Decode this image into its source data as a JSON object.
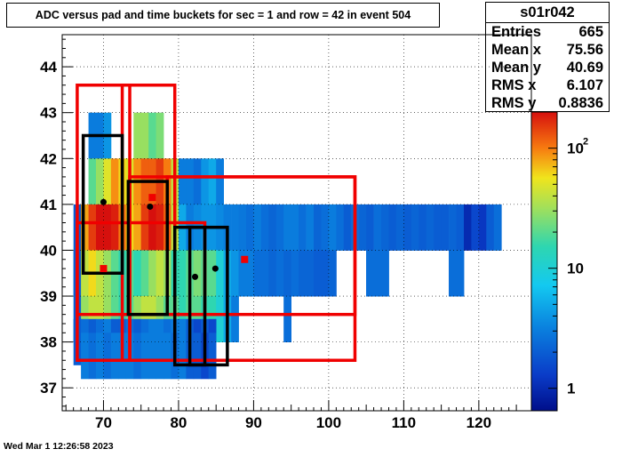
{
  "title": "ADC versus  pad and time buckets for sec = 1 and row = 42 in event 504",
  "stats": {
    "name": "s01r042",
    "rows": [
      {
        "key": "Entries",
        "value": "665"
      },
      {
        "key": "Mean x",
        "value": "75.56"
      },
      {
        "key": "Mean y",
        "value": "40.69"
      },
      {
        "key": "RMS x",
        "value": "6.107"
      },
      {
        "key": "RMS y",
        "value": "0.8836"
      }
    ]
  },
  "footer": "Wed Mar  1 12:26:58 2023",
  "chart_data": {
    "type": "heatmap",
    "x_ticks": [
      "70",
      "80",
      "90",
      "100",
      "110",
      "120"
    ],
    "y_ticks": [
      "37",
      "38",
      "39",
      "40",
      "41",
      "42",
      "43",
      "44"
    ],
    "xlim": [
      64.5,
      127
    ],
    "ylim": [
      36.5,
      44.7
    ],
    "grid": true,
    "colorbar": {
      "scale": "log",
      "range": [
        0.65,
        200
      ],
      "tick_labels": [
        {
          "base": "10",
          "exp": "2",
          "value": 100
        },
        {
          "base": "10",
          "exp": "",
          "value": 10
        },
        {
          "base": "1",
          "exp": "",
          "value": 1
        }
      ]
    },
    "cells": [
      [
        68.5,
        42.5,
        73,
        3.0
      ],
      [
        69.5,
        42.5,
        73,
        3.0
      ],
      [
        70.5,
        42.5,
        73,
        4.0
      ],
      [
        74.5,
        42.5,
        73,
        30
      ],
      [
        75.5,
        42.5,
        73,
        30
      ],
      [
        76.5,
        42.5,
        73,
        20
      ],
      [
        77.5,
        42.5,
        73,
        25
      ],
      [
        68.5,
        41.5,
        31,
        20
      ],
      [
        69.5,
        41.5,
        31,
        30
      ],
      [
        70.5,
        41.5,
        31,
        50
      ],
      [
        71.5,
        41.5,
        31,
        90
      ],
      [
        72.5,
        41.5,
        31,
        60
      ],
      [
        73.5,
        41.5,
        83,
        50
      ],
      [
        74.5,
        41.5,
        83,
        90
      ],
      [
        75.5,
        41.5,
        83,
        120
      ],
      [
        76.5,
        41.5,
        83,
        120
      ],
      [
        77.5,
        41.5,
        83,
        150
      ],
      [
        78.5,
        41.5,
        83,
        100
      ],
      [
        79.5,
        41.5,
        83,
        40
      ],
      [
        80.5,
        41.5,
        83,
        3.0
      ],
      [
        81.5,
        41.5,
        83,
        3.0
      ],
      [
        82.5,
        41.5,
        83,
        2.5
      ],
      [
        83.5,
        41.5,
        83,
        4.0
      ],
      [
        84.5,
        41.5,
        83,
        5.0
      ],
      [
        85.5,
        41.5,
        83,
        3.0
      ],
      [
        66.5,
        40.5,
        73,
        2.0
      ],
      [
        67.5,
        40.5,
        73,
        80
      ],
      [
        68.5,
        40.5,
        73,
        150
      ],
      [
        69.5,
        40.5,
        73,
        200
      ],
      [
        70.5,
        40.5,
        73,
        200
      ],
      [
        71.5,
        40.5,
        73,
        180
      ],
      [
        72.5,
        40.5,
        73,
        100
      ],
      [
        73.5,
        40.5,
        73,
        60
      ],
      [
        74.5,
        40.5,
        73,
        80
      ],
      [
        75.5,
        40.5,
        73,
        150
      ],
      [
        76.5,
        40.5,
        73,
        200
      ],
      [
        77.5,
        40.5,
        73,
        180
      ],
      [
        78.5,
        40.5,
        73,
        120
      ],
      [
        79.5,
        40.5,
        73,
        40
      ],
      [
        80.5,
        40.5,
        73,
        5.0
      ],
      [
        81.5,
        40.5,
        73,
        3.0
      ],
      [
        82.5,
        40.5,
        73,
        3.5
      ],
      [
        83.5,
        40.5,
        73,
        4.0
      ],
      [
        84.5,
        40.5,
        73,
        4.0
      ],
      [
        85.5,
        40.5,
        73,
        3.5
      ],
      [
        86.5,
        40.5,
        73,
        3.0
      ],
      [
        87.5,
        40.5,
        73,
        3.0
      ],
      [
        88.5,
        40.5,
        73,
        2.8
      ],
      [
        89.5,
        40.5,
        73,
        2.5
      ],
      [
        90.5,
        40.5,
        73,
        3.0
      ],
      [
        91.5,
        40.5,
        73,
        2.5
      ],
      [
        92.5,
        40.5,
        73,
        2.2
      ],
      [
        93.5,
        40.5,
        73,
        2.5
      ],
      [
        94.5,
        40.5,
        73,
        3.0
      ],
      [
        95.5,
        40.5,
        73,
        3.0
      ],
      [
        96.5,
        40.5,
        73,
        2.5
      ],
      [
        97.5,
        40.5,
        73,
        3.0
      ],
      [
        98.5,
        40.5,
        73,
        2.2
      ],
      [
        99.5,
        40.5,
        73,
        2.5
      ],
      [
        100.5,
        40.5,
        73,
        3.0
      ],
      [
        101.5,
        40.5,
        73,
        2.5
      ],
      [
        102.5,
        40.5,
        73,
        2.0
      ],
      [
        103.5,
        40.5,
        73,
        2.5
      ],
      [
        104.5,
        40.5,
        73,
        2.2
      ],
      [
        105.5,
        40.5,
        73,
        2.0
      ],
      [
        106.5,
        40.5,
        73,
        2.5
      ],
      [
        107.5,
        40.5,
        73,
        2.2
      ],
      [
        108.5,
        40.5,
        73,
        2.0
      ],
      [
        109.5,
        40.5,
        73,
        2.2
      ],
      [
        110.5,
        40.5,
        73,
        2.0
      ],
      [
        111.5,
        40.5,
        73,
        2.2
      ],
      [
        112.5,
        40.5,
        73,
        2.0
      ],
      [
        113.5,
        40.5,
        73,
        2.2
      ],
      [
        114.5,
        40.5,
        73,
        2.0
      ],
      [
        115.5,
        40.5,
        73,
        2.0
      ],
      [
        116.5,
        40.5,
        73,
        2.2
      ],
      [
        117.5,
        40.5,
        73,
        2.0
      ],
      [
        118.5,
        40.5,
        73,
        1.0
      ],
      [
        119.5,
        40.5,
        73,
        1.5
      ],
      [
        120.5,
        40.5,
        73,
        1.2
      ],
      [
        121.5,
        40.5,
        73,
        2.0
      ],
      [
        122.5,
        40.5,
        73,
        2.5
      ],
      [
        66.5,
        39.5,
        52,
        2.0
      ],
      [
        67.5,
        39.5,
        52,
        50
      ],
      [
        68.5,
        39.5,
        52,
        80
      ],
      [
        69.5,
        39.5,
        52,
        60
      ],
      [
        70.5,
        39.5,
        52,
        50
      ],
      [
        71.5,
        39.5,
        52,
        30
      ],
      [
        72.5,
        39.5,
        52,
        20
      ],
      [
        73.5,
        39.5,
        52,
        25
      ],
      [
        74.5,
        39.5,
        52,
        20
      ],
      [
        75.5,
        39.5,
        52,
        30
      ],
      [
        76.5,
        39.5,
        52,
        50
      ],
      [
        77.5,
        39.5,
        52,
        60
      ],
      [
        78.5,
        39.5,
        52,
        40
      ],
      [
        79.5,
        39.5,
        52,
        20
      ],
      [
        80.5,
        39.5,
        52,
        10
      ],
      [
        81.5,
        39.5,
        52,
        15
      ],
      [
        82.5,
        39.5,
        52,
        20
      ],
      [
        83.5,
        39.5,
        52,
        20
      ],
      [
        84.5,
        39.5,
        52,
        25
      ],
      [
        85.5,
        39.5,
        52,
        10
      ],
      [
        86.5,
        39.5,
        52,
        5.0
      ],
      [
        87.5,
        39.5,
        52,
        4.0
      ],
      [
        88.5,
        39.5,
        52,
        3.0
      ],
      [
        89.5,
        39.5,
        52,
        3.5
      ],
      [
        90.5,
        39.5,
        52,
        3.0
      ],
      [
        91.5,
        39.5,
        52,
        2.5
      ],
      [
        92.5,
        39.5,
        52,
        2.5
      ],
      [
        93.5,
        39.5,
        52,
        2.5
      ],
      [
        94.5,
        39.5,
        52,
        2.2
      ],
      [
        95.5,
        39.5,
        52,
        2.5
      ],
      [
        96.5,
        39.5,
        52,
        2.2
      ],
      [
        97.5,
        39.5,
        52,
        2.5
      ],
      [
        98.5,
        39.5,
        52,
        2.0
      ],
      [
        99.5,
        39.5,
        52,
        2.5
      ],
      [
        100.5,
        39.5,
        52,
        2.2
      ],
      [
        105.5,
        39.5,
        52,
        2.5
      ],
      [
        106.5,
        39.5,
        52,
        2.5
      ],
      [
        107.5,
        39.5,
        52,
        2.5
      ],
      [
        116.5,
        39.5,
        52,
        2.5
      ],
      [
        117.5,
        39.5,
        52,
        2.5
      ],
      [
        66.5,
        39.5,
        42,
        2.0
      ],
      [
        67.5,
        39.5,
        42,
        40
      ],
      [
        68.5,
        39.5,
        42,
        60
      ],
      [
        69.5,
        39.5,
        42,
        40
      ],
      [
        70.5,
        39.5,
        42,
        30
      ],
      [
        71.5,
        39.5,
        42,
        20
      ],
      [
        72.5,
        39.5,
        42,
        15
      ],
      [
        73.5,
        39.5,
        42,
        20
      ],
      [
        74.5,
        39.5,
        42,
        15
      ],
      [
        75.5,
        39.5,
        42,
        20
      ],
      [
        76.5,
        39.5,
        42,
        30
      ],
      [
        77.5,
        39.5,
        42,
        40
      ],
      [
        78.5,
        39.5,
        42,
        30
      ],
      [
        79.5,
        39.5,
        42,
        15
      ],
      [
        80.5,
        39.5,
        42,
        15
      ],
      [
        81.5,
        39.5,
        42,
        20
      ],
      [
        82.5,
        39.5,
        42,
        25
      ],
      [
        83.5,
        39.5,
        42,
        20
      ],
      [
        84.5,
        39.5,
        42,
        20
      ],
      [
        85.5,
        39.5,
        42,
        10
      ],
      [
        86.5,
        39.5,
        42,
        5.0
      ],
      [
        87.5,
        39.5,
        42,
        4.0
      ],
      [
        88.5,
        39.5,
        42,
        3.0
      ],
      [
        89.5,
        39.5,
        42,
        3.0
      ],
      [
        90.5,
        39.5,
        42,
        2.5
      ],
      [
        91.5,
        39.5,
        42,
        2.5
      ],
      [
        92.5,
        39.5,
        42,
        2.2
      ],
      [
        93.5,
        39.5,
        42,
        2.5
      ],
      [
        94.5,
        39.5,
        42,
        2.2
      ],
      [
        95.5,
        39.5,
        42,
        2.5
      ],
      [
        96.5,
        39.5,
        42,
        2.2
      ],
      [
        97.5,
        39.5,
        42,
        2.2
      ],
      [
        98.5,
        39.5,
        42,
        2.0
      ],
      [
        99.5,
        39.5,
        42,
        2.0
      ],
      [
        100.5,
        39.5,
        42,
        2.2
      ],
      [
        105.5,
        39.5,
        42,
        2.5
      ],
      [
        106.5,
        39.5,
        42,
        2.5
      ],
      [
        107.5,
        39.5,
        42,
        2.5
      ],
      [
        116.5,
        39.5,
        42,
        2.5
      ],
      [
        117.5,
        39.5,
        42,
        2.5
      ],
      [
        66.5,
        38.5,
        52,
        2.0
      ],
      [
        67.5,
        38.5,
        52,
        30
      ],
      [
        68.5,
        38.5,
        52,
        40
      ],
      [
        69.5,
        38.5,
        52,
        40
      ],
      [
        70.5,
        38.5,
        52,
        30
      ],
      [
        71.5,
        38.5,
        52,
        20
      ],
      [
        72.5,
        38.5,
        52,
        15
      ],
      [
        73.5,
        38.5,
        52,
        20
      ],
      [
        74.5,
        38.5,
        52,
        30
      ],
      [
        75.5,
        38.5,
        52,
        40
      ],
      [
        76.5,
        38.5,
        52,
        40
      ],
      [
        77.5,
        38.5,
        52,
        30
      ],
      [
        78.5,
        38.5,
        52,
        20
      ],
      [
        79.5,
        38.5,
        52,
        20
      ],
      [
        80.5,
        38.5,
        52,
        15
      ],
      [
        81.5,
        38.5,
        52,
        20
      ],
      [
        82.5,
        38.5,
        52,
        20
      ],
      [
        83.5,
        38.5,
        52,
        15
      ],
      [
        84.5,
        38.5,
        52,
        15
      ],
      [
        85.5,
        38.5,
        52,
        10
      ],
      [
        86.5,
        38.5,
        52,
        5.0
      ],
      [
        87.5,
        38.5,
        52,
        3.0
      ],
      [
        94.5,
        38.5,
        52,
        2.5
      ],
      [
        66.5,
        38.0,
        42,
        2.0
      ],
      [
        67.5,
        38.0,
        42,
        2.5
      ],
      [
        68.5,
        38.0,
        42,
        2.0
      ],
      [
        69.5,
        38.0,
        42,
        2.5
      ],
      [
        70.5,
        38.0,
        42,
        3.0
      ],
      [
        71.5,
        38.0,
        42,
        2.0
      ],
      [
        72.5,
        38.0,
        42,
        2.0
      ],
      [
        73.5,
        38.0,
        42,
        2.5
      ],
      [
        74.5,
        38.0,
        42,
        2.0
      ],
      [
        75.5,
        38.0,
        42,
        2.5
      ],
      [
        76.5,
        38.0,
        42,
        3.0
      ],
      [
        77.5,
        38.0,
        42,
        3.0
      ],
      [
        78.5,
        38.0,
        42,
        2.5
      ],
      [
        79.5,
        38.0,
        42,
        3.0
      ],
      [
        80.5,
        38.0,
        42,
        3.0
      ],
      [
        81.5,
        38.0,
        42,
        2.0
      ],
      [
        82.5,
        38.0,
        42,
        1.5
      ],
      [
        83.5,
        38.0,
        42,
        2.0
      ],
      [
        84.5,
        38.0,
        42,
        1.5
      ],
      [
        67.5,
        37.7,
        21,
        3.0
      ],
      [
        68.5,
        37.7,
        21,
        2.5
      ],
      [
        69.5,
        37.7,
        21,
        3.0
      ],
      [
        70.5,
        37.7,
        21,
        2.5
      ],
      [
        71.5,
        37.7,
        21,
        3.0
      ],
      [
        72.5,
        37.7,
        21,
        3.0
      ],
      [
        73.5,
        37.7,
        21,
        3.0
      ],
      [
        74.5,
        37.7,
        21,
        2.5
      ],
      [
        75.5,
        37.7,
        21,
        3.0
      ],
      [
        76.5,
        37.7,
        21,
        3.0
      ],
      [
        77.5,
        37.7,
        21,
        3.0
      ],
      [
        78.5,
        37.7,
        21,
        3.0
      ],
      [
        79.5,
        37.7,
        21,
        2.5
      ],
      [
        80.5,
        37.7,
        21,
        3.0
      ],
      [
        81.5,
        37.7,
        21,
        2.0
      ],
      [
        82.5,
        37.7,
        21,
        2.0
      ],
      [
        83.5,
        37.7,
        21,
        1.5
      ],
      [
        84.5,
        37.7,
        21,
        2.0
      ]
    ],
    "red_boxes": [
      [
        66.5,
        37.6,
        73.5,
        43.6
      ],
      [
        72.5,
        37.6,
        79.5,
        43.6
      ],
      [
        66.5,
        38.6,
        83.5,
        40.6
      ],
      [
        73.5,
        37.6,
        103.5,
        41.6
      ],
      [
        78.5,
        38.6,
        103.5,
        41.6
      ]
    ],
    "black_boxes": [
      [
        67.3,
        39.5,
        72.5,
        42.5
      ],
      [
        73.3,
        38.6,
        78.5,
        41.5
      ],
      [
        79.5,
        37.5,
        83.5,
        40.5
      ],
      [
        81.5,
        37.5,
        86.5,
        40.5
      ]
    ],
    "black_points": [
      [
        70.0,
        41.05
      ],
      [
        76.2,
        40.95
      ],
      [
        82.2,
        39.42
      ],
      [
        84.9,
        39.6
      ]
    ],
    "red_points": [
      [
        70.0,
        39.6
      ],
      [
        76.5,
        41.15
      ],
      [
        88.8,
        39.8
      ]
    ]
  }
}
